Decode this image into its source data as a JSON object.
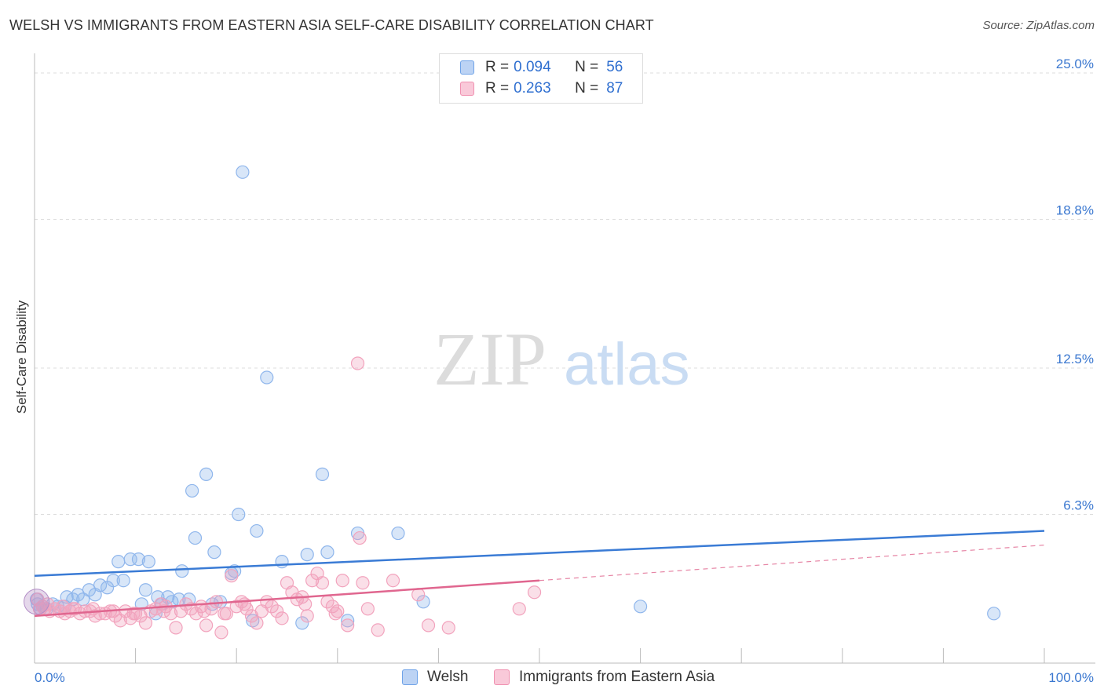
{
  "title": "WELSH VS IMMIGRANTS FROM EASTERN ASIA SELF-CARE DISABILITY CORRELATION CHART",
  "source": "Source: ZipAtlas.com",
  "watermark": {
    "zip": "ZIP",
    "atlas": "atlas"
  },
  "legend": {
    "r_label": "R =",
    "n_label": "N =",
    "rows": [
      {
        "r": "0.094",
        "n": "56",
        "color": "#6fa3e8",
        "fill": "#bcd3f4"
      },
      {
        "r": "0.263",
        "n": "87",
        "color": "#f090b0",
        "fill": "#f9c9d9"
      }
    ]
  },
  "bottom_legend": [
    {
      "label": "Welsh",
      "color": "#6fa3e8",
      "fill": "#bcd3f4"
    },
    {
      "label": "Immigrants from Eastern Asia",
      "color": "#f090b0",
      "fill": "#f9c9d9"
    }
  ],
  "chart_data": {
    "type": "scatter",
    "title": "WELSH VS IMMIGRANTS FROM EASTERN ASIA SELF-CARE DISABILITY CORRELATION CHART",
    "xlabel": "",
    "ylabel": "Self-Care Disability",
    "xlim": [
      0,
      100
    ],
    "ylim": [
      0,
      25
    ],
    "x_tick_labels": [
      "0.0%",
      "100.0%"
    ],
    "y_ticks": [
      6.3,
      12.5,
      18.8,
      25.0
    ],
    "y_tick_labels": [
      "6.3%",
      "12.5%",
      "18.8%",
      "25.0%"
    ],
    "grid": true,
    "series": [
      {
        "name": "Welsh",
        "color": "#3a7bd5",
        "point_color": "#8fb6ec",
        "trend": {
          "x0": 0,
          "y0": 3.7,
          "x1": 100,
          "y1": 5.6,
          "dashed_from": null
        },
        "points": [
          [
            0.3,
            2.5
          ],
          [
            0.8,
            2.4
          ],
          [
            1.2,
            2.3
          ],
          [
            1.8,
            2.5
          ],
          [
            2.3,
            2.4
          ],
          [
            3.0,
            2.4
          ],
          [
            3.2,
            2.8
          ],
          [
            3.8,
            2.7
          ],
          [
            4.3,
            2.9
          ],
          [
            4.8,
            2.7
          ],
          [
            5.4,
            3.1
          ],
          [
            6.0,
            2.9
          ],
          [
            6.5,
            3.3
          ],
          [
            7.2,
            3.2
          ],
          [
            7.8,
            3.5
          ],
          [
            8.3,
            4.3
          ],
          [
            8.8,
            3.5
          ],
          [
            9.5,
            4.4
          ],
          [
            10.3,
            4.4
          ],
          [
            10.6,
            2.5
          ],
          [
            11.0,
            3.1
          ],
          [
            11.3,
            4.3
          ],
          [
            12.0,
            2.1
          ],
          [
            12.2,
            2.8
          ],
          [
            12.6,
            2.5
          ],
          [
            13.2,
            2.8
          ],
          [
            13.6,
            2.6
          ],
          [
            14.3,
            2.7
          ],
          [
            14.6,
            3.9
          ],
          [
            15.3,
            2.7
          ],
          [
            15.6,
            7.3
          ],
          [
            15.9,
            5.3
          ],
          [
            17.0,
            8.0
          ],
          [
            17.6,
            2.5
          ],
          [
            17.8,
            4.7
          ],
          [
            18.4,
            2.6
          ],
          [
            19.5,
            3.8
          ],
          [
            19.8,
            3.9
          ],
          [
            20.2,
            6.3
          ],
          [
            20.6,
            20.8
          ],
          [
            21.6,
            1.8
          ],
          [
            22.0,
            5.6
          ],
          [
            23.0,
            12.1
          ],
          [
            24.5,
            4.3
          ],
          [
            26.5,
            1.7
          ],
          [
            27.0,
            4.6
          ],
          [
            28.5,
            8.0
          ],
          [
            29.0,
            4.7
          ],
          [
            31.0,
            1.8
          ],
          [
            32.0,
            5.5
          ],
          [
            36.0,
            5.5
          ],
          [
            38.5,
            2.6
          ],
          [
            60.0,
            2.4
          ],
          [
            95.0,
            2.1
          ],
          [
            0.2,
            2.7
          ],
          [
            0.6,
            2.3
          ]
        ]
      },
      {
        "name": "Immigrants from Eastern Asia",
        "color": "#e0668f",
        "point_color": "#f2a3bd",
        "trend": {
          "x0": 0,
          "y0": 2.0,
          "x1": 100,
          "y1": 5.0,
          "dashed_from": 50
        },
        "points": [
          [
            0.5,
            2.3
          ],
          [
            1.0,
            2.3
          ],
          [
            1.5,
            2.2
          ],
          [
            2.0,
            2.3
          ],
          [
            2.5,
            2.2
          ],
          [
            3.0,
            2.1
          ],
          [
            3.5,
            2.2
          ],
          [
            4.0,
            2.3
          ],
          [
            4.5,
            2.1
          ],
          [
            5.0,
            2.2
          ],
          [
            5.5,
            2.2
          ],
          [
            6.0,
            2.0
          ],
          [
            6.5,
            2.1
          ],
          [
            7.0,
            2.1
          ],
          [
            7.5,
            2.2
          ],
          [
            8.0,
            2.0
          ],
          [
            8.5,
            1.8
          ],
          [
            9.0,
            2.2
          ],
          [
            9.5,
            1.9
          ],
          [
            10.0,
            2.1
          ],
          [
            10.5,
            2.0
          ],
          [
            11.0,
            1.7
          ],
          [
            11.5,
            2.2
          ],
          [
            12.0,
            2.3
          ],
          [
            12.5,
            2.5
          ],
          [
            13.0,
            2.4
          ],
          [
            13.5,
            2.1
          ],
          [
            14.0,
            1.5
          ],
          [
            14.5,
            2.2
          ],
          [
            15.0,
            2.5
          ],
          [
            15.5,
            2.3
          ],
          [
            16.0,
            2.1
          ],
          [
            16.5,
            2.4
          ],
          [
            17.0,
            1.6
          ],
          [
            17.5,
            2.3
          ],
          [
            18.0,
            2.6
          ],
          [
            18.5,
            1.3
          ],
          [
            19.0,
            2.1
          ],
          [
            19.5,
            3.7
          ],
          [
            20.0,
            2.4
          ],
          [
            20.5,
            2.6
          ],
          [
            21.0,
            2.3
          ],
          [
            21.5,
            2.0
          ],
          [
            22.0,
            1.7
          ],
          [
            22.5,
            2.2
          ],
          [
            23.0,
            2.6
          ],
          [
            23.5,
            2.4
          ],
          [
            24.0,
            2.2
          ],
          [
            24.5,
            1.9
          ],
          [
            25.0,
            3.4
          ],
          [
            25.5,
            3.0
          ],
          [
            26.0,
            2.7
          ],
          [
            26.5,
            2.8
          ],
          [
            27.0,
            2.0
          ],
          [
            27.5,
            3.5
          ],
          [
            28.0,
            3.8
          ],
          [
            28.5,
            3.4
          ],
          [
            29.0,
            2.6
          ],
          [
            29.5,
            2.4
          ],
          [
            30.0,
            2.2
          ],
          [
            30.5,
            3.5
          ],
          [
            31.0,
            1.6
          ],
          [
            32.0,
            12.7
          ],
          [
            32.5,
            3.4
          ],
          [
            33.0,
            2.3
          ],
          [
            34.0,
            1.4
          ],
          [
            35.5,
            3.5
          ],
          [
            38.0,
            2.9
          ],
          [
            39.0,
            1.6
          ],
          [
            41.0,
            1.5
          ],
          [
            48.0,
            2.3
          ],
          [
            49.5,
            3.0
          ],
          [
            0.3,
            2.7
          ],
          [
            0.8,
            2.4
          ],
          [
            1.3,
            2.5
          ],
          [
            2.8,
            2.4
          ],
          [
            5.8,
            2.3
          ],
          [
            7.8,
            2.2
          ],
          [
            9.8,
            2.1
          ],
          [
            12.8,
            2.2
          ],
          [
            18.8,
            2.1
          ],
          [
            20.8,
            2.5
          ],
          [
            26.8,
            2.5
          ],
          [
            32.2,
            5.3
          ],
          [
            29.8,
            2.1
          ],
          [
            16.8,
            2.2
          ],
          [
            3.8,
            2.3
          ]
        ]
      }
    ]
  }
}
